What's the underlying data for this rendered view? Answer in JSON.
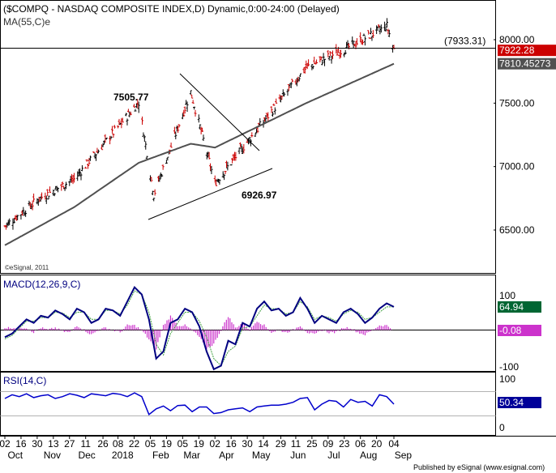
{
  "chart_data": [
    {
      "type": "candlestick",
      "title": "($COMPQ - NASDAQ COMPOSITE INDEX,D) Dynamic,0:00-24:00 (Delayed)",
      "overlay_label": "MA(55,C)e",
      "watermark": "©eSignal, 2011",
      "y_ticks": [
        "6500.00",
        "7000.00",
        "7500.00",
        "8000.00"
      ],
      "ylim": [
        6300,
        8110
      ],
      "last_price": "7922.28",
      "ma_value": "7810.45273",
      "horizontal_line": {
        "label": "(7933.31)",
        "value": 7933.31
      },
      "annotations": [
        "7505.77",
        "6926.97"
      ],
      "key_points": [
        {
          "date": "2017-10-02",
          "close": 6530
        },
        {
          "date": "2017-11-01",
          "close": 6750
        },
        {
          "date": "2017-12-01",
          "close": 6900
        },
        {
          "date": "2018-01-26",
          "close": 7505.77
        },
        {
          "date": "2018-02-08",
          "close": 6777
        },
        {
          "date": "2018-03-12",
          "close": 7588
        },
        {
          "date": "2018-04-02",
          "close": 6870
        },
        {
          "date": "2018-06-20",
          "close": 7781
        },
        {
          "date": "2018-07-25",
          "close": 7932
        },
        {
          "date": "2018-08-29",
          "close": 8109
        },
        {
          "date": "2018-09-04",
          "close": 7922.28
        }
      ],
      "ma_key_points": [
        {
          "date": "2017-10-02",
          "value": 6380
        },
        {
          "date": "2017-12-01",
          "value": 6680
        },
        {
          "date": "2018-01-26",
          "value": 7030
        },
        {
          "date": "2018-03-12",
          "value": 7180
        },
        {
          "date": "2018-04-02",
          "value": 7150
        },
        {
          "date": "2018-06-20",
          "value": 7500
        },
        {
          "date": "2018-09-04",
          "value": 7810.45
        }
      ]
    },
    {
      "type": "line",
      "label": "MACD(12,26,9,C)",
      "y_ticks": [
        "100",
        "-100"
      ],
      "ylim": [
        -115,
        130
      ],
      "macd_value": "64.94",
      "histogram_value": "-0.08",
      "series": [
        {
          "values": [
            -20,
            -10,
            10,
            30,
            20,
            40,
            35,
            55,
            45,
            30,
            60,
            50,
            20,
            30,
            60,
            55,
            40,
            80,
            120,
            100,
            30,
            -80,
            -60,
            20,
            30,
            60,
            50,
            10,
            -60,
            -110,
            -100,
            -30,
            -40,
            20,
            10,
            60,
            80,
            55,
            60,
            40,
            50,
            90,
            60,
            20,
            40,
            30,
            20,
            50,
            60,
            45,
            20,
            35,
            60,
            75,
            65
          ]
        },
        {
          "values": [
            -25,
            -15,
            5,
            25,
            25,
            35,
            35,
            50,
            48,
            35,
            50,
            50,
            30,
            30,
            55,
            55,
            45,
            70,
            110,
            100,
            50,
            -40,
            -70,
            -10,
            20,
            50,
            50,
            25,
            -20,
            -80,
            -100,
            -60,
            -45,
            5,
            10,
            40,
            70,
            60,
            60,
            45,
            50,
            80,
            65,
            30,
            40,
            35,
            25,
            45,
            55,
            50,
            30,
            35,
            50,
            65,
            65
          ]
        }
      ]
    },
    {
      "type": "line",
      "label": "RSI(14,C)",
      "y_ticks": [
        "100",
        "50",
        "0"
      ],
      "ylim": [
        0,
        100
      ],
      "rsi_value": "50.34",
      "series": [
        {
          "values": [
            62,
            70,
            66,
            72,
            64,
            68,
            70,
            62,
            66,
            72,
            69,
            64,
            72,
            70,
            68,
            73,
            71,
            66,
            74,
            66,
            28,
            40,
            46,
            36,
            47,
            48,
            34,
            44,
            44,
            30,
            32,
            38,
            40,
            42,
            34,
            44,
            46,
            48,
            48,
            50,
            54,
            62,
            64,
            38,
            50,
            58,
            56,
            44,
            60,
            54,
            56,
            46,
            70,
            66,
            50
          ]
        }
      ]
    }
  ],
  "x_axis": {
    "days": [
      "02",
      "16",
      "30",
      "13",
      "27",
      "11",
      "26",
      "08",
      "22",
      "05",
      "19",
      "05",
      "19",
      "02",
      "16",
      "30",
      "14",
      "29",
      "11",
      "25",
      "09",
      "23",
      "06",
      "20",
      "04"
    ],
    "months": [
      "Oct",
      "Nov",
      "Dec",
      "2018",
      "Feb",
      "Mar",
      "Apr",
      "May",
      "Jun",
      "Jul",
      "Aug",
      "Sep"
    ]
  },
  "footer": "Published by eSignal (www.esignal.com)",
  "colors": {
    "price": "#000000",
    "ma": "#505050",
    "last_price_bg": "#cc0000",
    "macd_line": "#000080",
    "signal_line": "#40a040",
    "histogram": "#cc33cc",
    "macd_badge": "#006633",
    "rsi_line": "#0000cc",
    "rsi_badge": "#000099",
    "axis_text": "#000000",
    "title_text": "#000000"
  }
}
